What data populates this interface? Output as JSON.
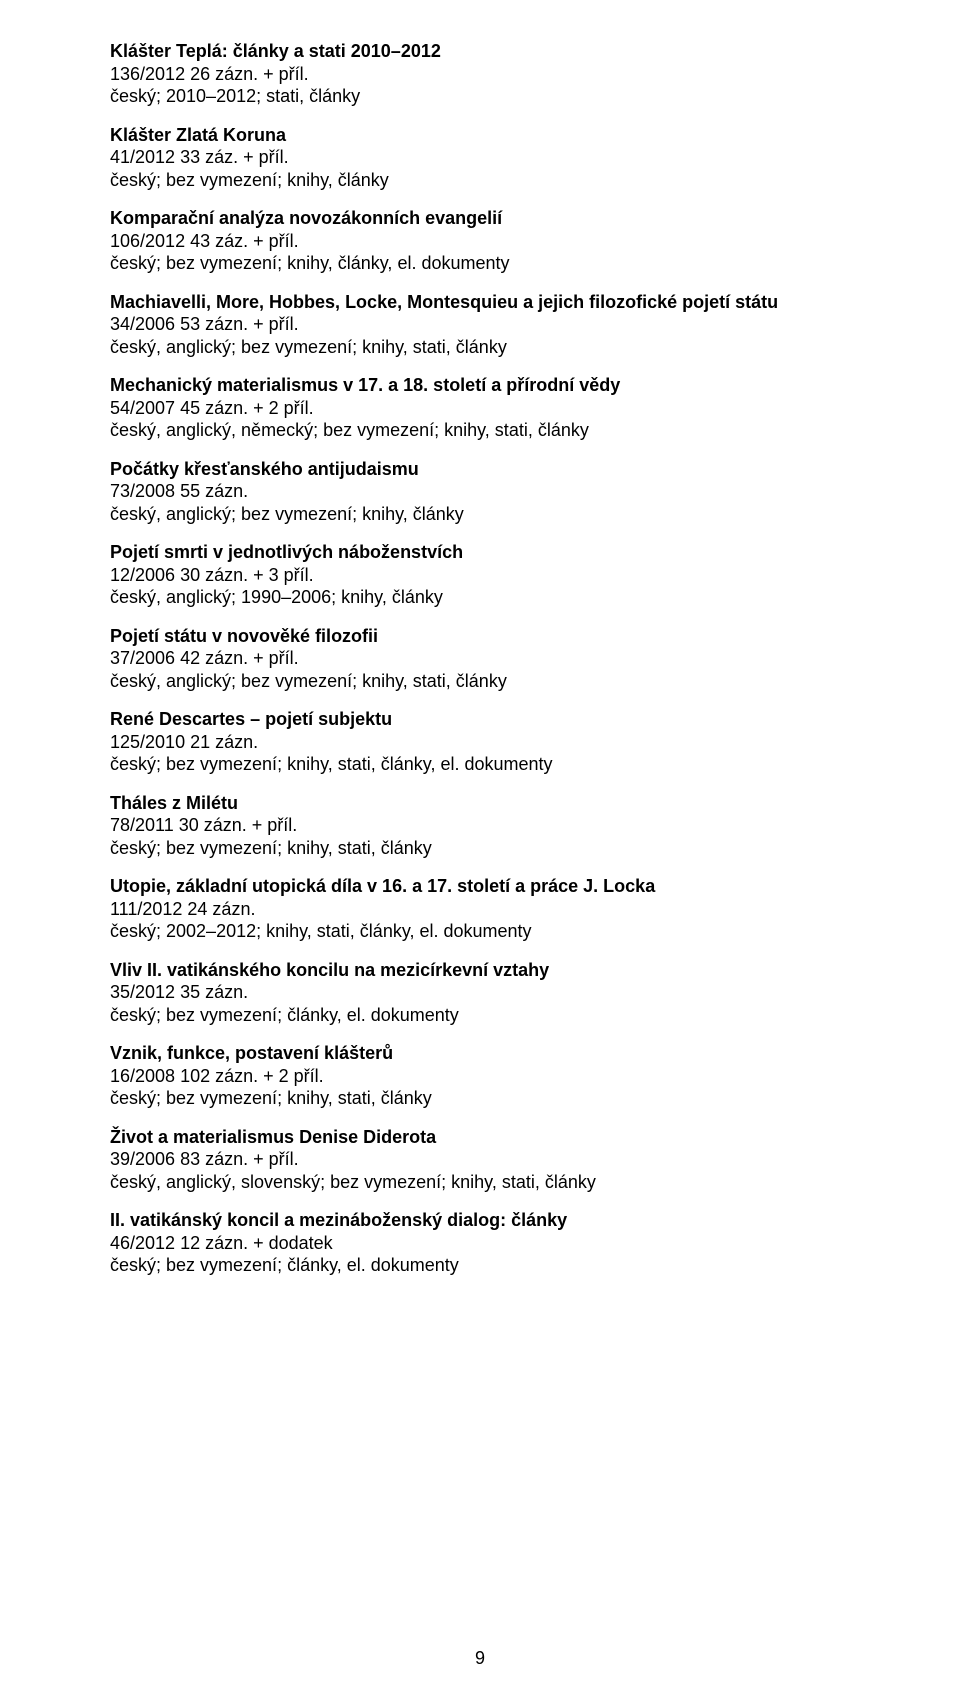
{
  "page_number": "9",
  "entries": [
    {
      "title": "Klášter Teplá: články a stati 2010–2012",
      "line2": "136/2012 26 zázn. + příl.",
      "line3": "český; 2010–2012; stati, články"
    },
    {
      "title": "Klášter Zlatá Koruna",
      "line2": "41/2012 33 záz. + příl.",
      "line3": "český; bez vymezení; knihy, články"
    },
    {
      "title": "Komparační analýza novozákonních evangelií",
      "line2": "106/2012 43 záz. + příl.",
      "line3": "český; bez vymezení; knihy, články, el. dokumenty"
    },
    {
      "title": "Machiavelli, More, Hobbes, Locke, Montesquieu a jejich filozofické pojetí státu",
      "line2": "34/2006 53 zázn. + příl.",
      "line3": "český, anglický; bez vymezení; knihy, stati, články"
    },
    {
      "title": "Mechanický materialismus v 17. a 18. století a přírodní vědy",
      "line2": "54/2007 45 zázn. + 2 příl.",
      "line3": "český, anglický, německý; bez vymezení; knihy, stati, články"
    },
    {
      "title": "Počátky křesťanského antijudaismu",
      "line2": "73/2008 55 zázn.",
      "line3": "český, anglický; bez vymezení; knihy, články"
    },
    {
      "title": "Pojetí smrti v jednotlivých náboženstvích",
      "line2": "12/2006 30 zázn. + 3 příl.",
      "line3": "český, anglický; 1990–2006; knihy, články"
    },
    {
      "title": "Pojetí státu v novověké filozofii",
      "line2": "37/2006 42 zázn. + příl.",
      "line3": "český, anglický; bez vymezení; knihy, stati, články"
    },
    {
      "title": "René Descartes – pojetí subjektu",
      "line2": "125/2010 21 zázn.",
      "line3": "český; bez vymezení; knihy, stati, články, el. dokumenty"
    },
    {
      "title": "Tháles z Milétu",
      "line2": "78/2011 30 zázn. + příl.",
      "line3": "český; bez vymezení; knihy, stati, články"
    },
    {
      "title": "Utopie, základní utopická díla v 16. a 17. století a práce J. Locka",
      "line2": "111/2012 24 zázn.",
      "line3": "český; 2002–2012; knihy, stati, články, el. dokumenty"
    },
    {
      "title": "Vliv II. vatikánského koncilu na mezicírkevní vztahy",
      "line2": "35/2012 35 zázn.",
      "line3": "český; bez vymezení; články, el. dokumenty"
    },
    {
      "title": "Vznik, funkce, postavení klášterů",
      "line2": "16/2008 102 zázn. + 2 příl.",
      "line3": "český; bez vymezení; knihy, stati, články"
    },
    {
      "title": "Život a materialismus Denise Diderota",
      "line2": "39/2006 83 zázn. + příl.",
      "line3": "český, anglický, slovenský; bez vymezení; knihy, stati, články"
    },
    {
      "title": "II. vatikánský koncil a mezináboženský dialog: články",
      "line2": "46/2012 12 zázn. + dodatek",
      "line3": "český; bez vymezení; články, el. dokumenty"
    }
  ]
}
